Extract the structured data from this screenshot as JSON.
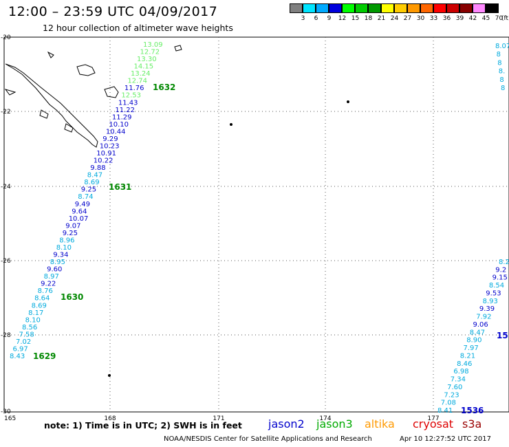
{
  "header": {
    "title": "12:00 – 23:59 UTC 04/09/2017",
    "subtitle": "12 hour collection of altimeter wave heights"
  },
  "color_scale": {
    "labels": [
      "3",
      "6",
      "9",
      "12",
      "15",
      "18",
      "21",
      "24",
      "27",
      "30",
      "33",
      "36",
      "39",
      "42",
      "45",
      "70"
    ],
    "unit": "(ft)",
    "colors": [
      "#808080",
      "#00e5ff",
      "#00aaff",
      "#0000dd",
      "#00ff00",
      "#00cc00",
      "#009900",
      "#ffff00",
      "#ffcc00",
      "#ff9900",
      "#ff6600",
      "#ff0000",
      "#cc0000",
      "#880000",
      "#ff88ff",
      "#000000"
    ]
  },
  "axes": {
    "lat_ticks": [
      "-20",
      "-22",
      "-24",
      "-26",
      "-28",
      "-30"
    ],
    "lon_ticks": [
      "165",
      "168",
      "171",
      "174",
      "177"
    ]
  },
  "footer": {
    "note": "note: 1) Time is in UTC; 2) SWH is in feet",
    "credit": "NOAA/NESDIS Center for Satellite Applications and Research",
    "timestamp": "Apr 10 12:27:52 UTC 2017"
  },
  "satellites": [
    {
      "name": "jason2",
      "color": "#0000cc"
    },
    {
      "name": "jason3",
      "color": "#00aa00"
    },
    {
      "name": "altika",
      "color": "#ff9900"
    },
    {
      "name": "cryosat",
      "color": "#dd0000"
    },
    {
      "name": "s3a",
      "color": "#990000"
    }
  ],
  "tracks": [
    {
      "id": "track-west",
      "points": [
        {
          "v": "13.09",
          "c": "#66ee66"
        },
        {
          "v": "12.72",
          "c": "#66ee66"
        },
        {
          "v": "13.30",
          "c": "#66ee66"
        },
        {
          "v": "14.15",
          "c": "#66ee66"
        },
        {
          "v": "13.24",
          "c": "#66ee66"
        },
        {
          "v": "12.74",
          "c": "#66ee66"
        },
        {
          "v": "11.76",
          "c": "#0000cc"
        },
        {
          "v": "12.53",
          "c": "#66ee66"
        },
        {
          "v": "11.43",
          "c": "#0000cc"
        },
        {
          "v": "11.22",
          "c": "#0000cc"
        },
        {
          "v": "11.29",
          "c": "#0000cc"
        },
        {
          "v": "10.10",
          "c": "#0000cc"
        },
        {
          "v": "10.44",
          "c": "#0000cc"
        },
        {
          "v": "9.29",
          "c": "#0000cc"
        },
        {
          "v": "10.23",
          "c": "#0000cc"
        },
        {
          "v": "10.91",
          "c": "#0000cc"
        },
        {
          "v": "10.22",
          "c": "#0000cc"
        },
        {
          "v": "9.88",
          "c": "#0000cc"
        },
        {
          "v": "8.47",
          "c": "#00aadd"
        },
        {
          "v": "8.69",
          "c": "#00aadd"
        },
        {
          "v": "9.25",
          "c": "#0000cc"
        },
        {
          "v": "8.74",
          "c": "#00aadd"
        },
        {
          "v": "9.49",
          "c": "#0000cc"
        },
        {
          "v": "9.64",
          "c": "#0000cc"
        },
        {
          "v": "10.07",
          "c": "#0000cc"
        },
        {
          "v": "9.07",
          "c": "#0000cc"
        },
        {
          "v": "9.25",
          "c": "#0000cc"
        },
        {
          "v": "8.96",
          "c": "#00aadd"
        },
        {
          "v": "8.10",
          "c": "#00aadd"
        },
        {
          "v": "9.34",
          "c": "#0000cc"
        },
        {
          "v": "8.95",
          "c": "#00aadd"
        },
        {
          "v": "9.60",
          "c": "#0000cc"
        },
        {
          "v": "8.97",
          "c": "#00aadd"
        },
        {
          "v": "9.22",
          "c": "#0000cc"
        },
        {
          "v": "8.76",
          "c": "#00aadd"
        },
        {
          "v": "8.64",
          "c": "#00aadd"
        },
        {
          "v": "8.69",
          "c": "#00aadd"
        },
        {
          "v": "8.17",
          "c": "#00aadd"
        },
        {
          "v": "8.10",
          "c": "#00aadd"
        },
        {
          "v": "8.56",
          "c": "#00aadd"
        },
        {
          "v": "7.58",
          "c": "#00aadd"
        },
        {
          "v": "7.02",
          "c": "#00aadd"
        },
        {
          "v": "6.97",
          "c": "#00aadd"
        },
        {
          "v": "8.43",
          "c": "#00aadd"
        }
      ],
      "passes": [
        "1632",
        "1631",
        "1630",
        "1629"
      ],
      "pass_color": "#008800"
    },
    {
      "id": "track-east",
      "points": [
        {
          "v": "8.2",
          "c": "#00aadd"
        },
        {
          "v": "9.2",
          "c": "#0000cc"
        },
        {
          "v": "9.15",
          "c": "#0000cc"
        },
        {
          "v": "8.54",
          "c": "#00aadd"
        },
        {
          "v": "9.53",
          "c": "#0000cc"
        },
        {
          "v": "8.93",
          "c": "#00aadd"
        },
        {
          "v": "9.39",
          "c": "#0000cc"
        },
        {
          "v": "7.92",
          "c": "#00aadd"
        },
        {
          "v": "9.06",
          "c": "#0000cc"
        },
        {
          "v": "8.47",
          "c": "#00aadd"
        },
        {
          "v": "8.90",
          "c": "#00aadd"
        },
        {
          "v": "7.97",
          "c": "#00aadd"
        },
        {
          "v": "8.21",
          "c": "#00aadd"
        },
        {
          "v": "8.46",
          "c": "#00aadd"
        },
        {
          "v": "6.98",
          "c": "#00aadd"
        },
        {
          "v": "7.34",
          "c": "#00aadd"
        },
        {
          "v": "7.60",
          "c": "#00aadd"
        },
        {
          "v": "7.23",
          "c": "#00aadd"
        },
        {
          "v": "7.08",
          "c": "#00aadd"
        },
        {
          "v": "8.41",
          "c": "#00aadd"
        }
      ],
      "passes": [
        "15",
        "1536"
      ],
      "pass_color": "#0000cc"
    },
    {
      "id": "track-far-east",
      "points": [
        {
          "v": "8.07",
          "c": "#00aadd"
        },
        {
          "v": "8",
          "c": "#00aadd"
        },
        {
          "v": "8",
          "c": "#00aadd"
        },
        {
          "v": "8.",
          "c": "#00aadd"
        },
        {
          "v": "8",
          "c": "#00aadd"
        },
        {
          "v": "8",
          "c": "#00aadd"
        }
      ]
    }
  ]
}
